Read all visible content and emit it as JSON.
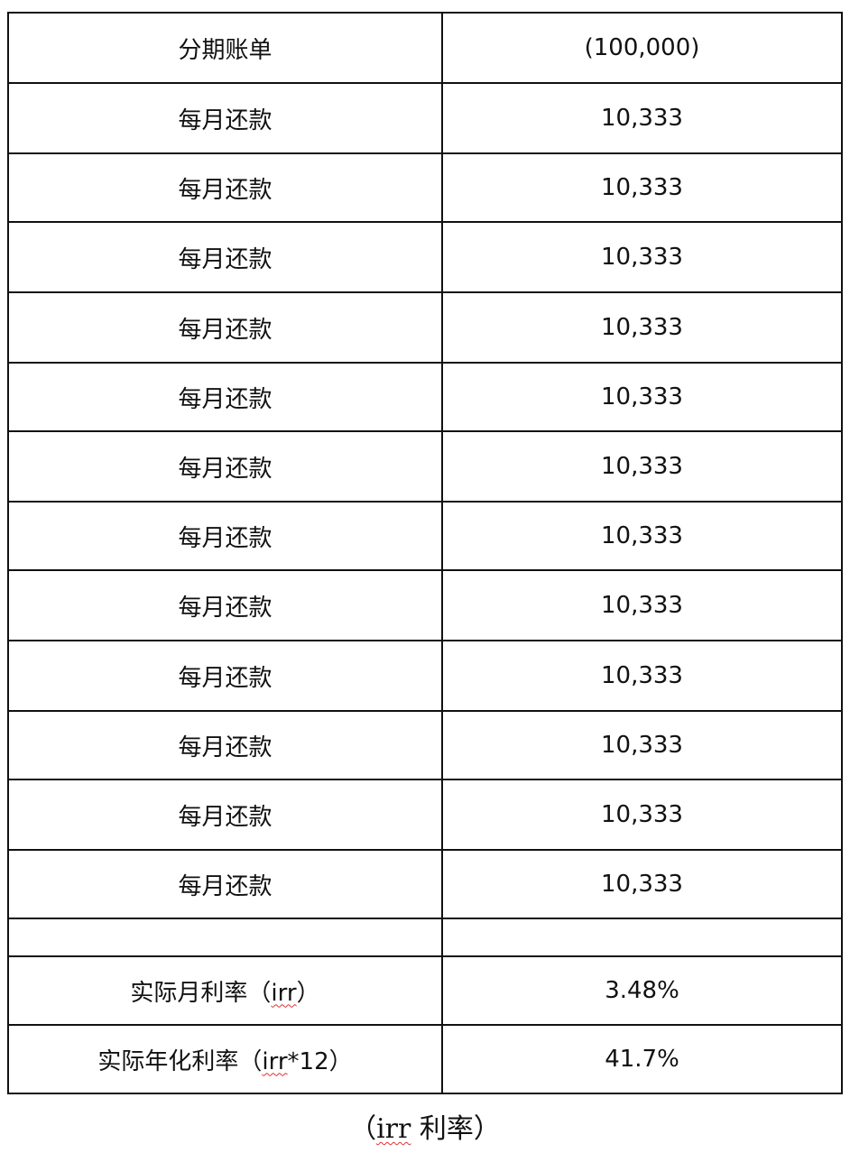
{
  "table": {
    "rows": [
      {
        "label": "分期账单",
        "value": "(100,000)"
      },
      {
        "label": "每月还款",
        "value": "10,333"
      },
      {
        "label": "每月还款",
        "value": "10,333"
      },
      {
        "label": "每月还款",
        "value": "10,333"
      },
      {
        "label": "每月还款",
        "value": "10,333"
      },
      {
        "label": "每月还款",
        "value": "10,333"
      },
      {
        "label": "每月还款",
        "value": "10,333"
      },
      {
        "label": "每月还款",
        "value": "10,333"
      },
      {
        "label": "每月还款",
        "value": "10,333"
      },
      {
        "label": "每月还款",
        "value": "10,333"
      },
      {
        "label": "每月还款",
        "value": "10,333"
      },
      {
        "label": "每月还款",
        "value": "10,333"
      },
      {
        "label": "每月还款",
        "value": "10,333"
      },
      {
        "label": "",
        "value": ""
      }
    ],
    "monthly_rate": {
      "prefix": "实际月利率（",
      "term": "irr",
      "suffix": "）",
      "value": "3.48%"
    },
    "annual_rate": {
      "prefix": "实际年化利率（",
      "term": "irr",
      "suffix": "*12）",
      "value": "41.7%"
    }
  },
  "caption": {
    "prefix": "（",
    "term": "irr",
    "suffix": " 利率）"
  }
}
